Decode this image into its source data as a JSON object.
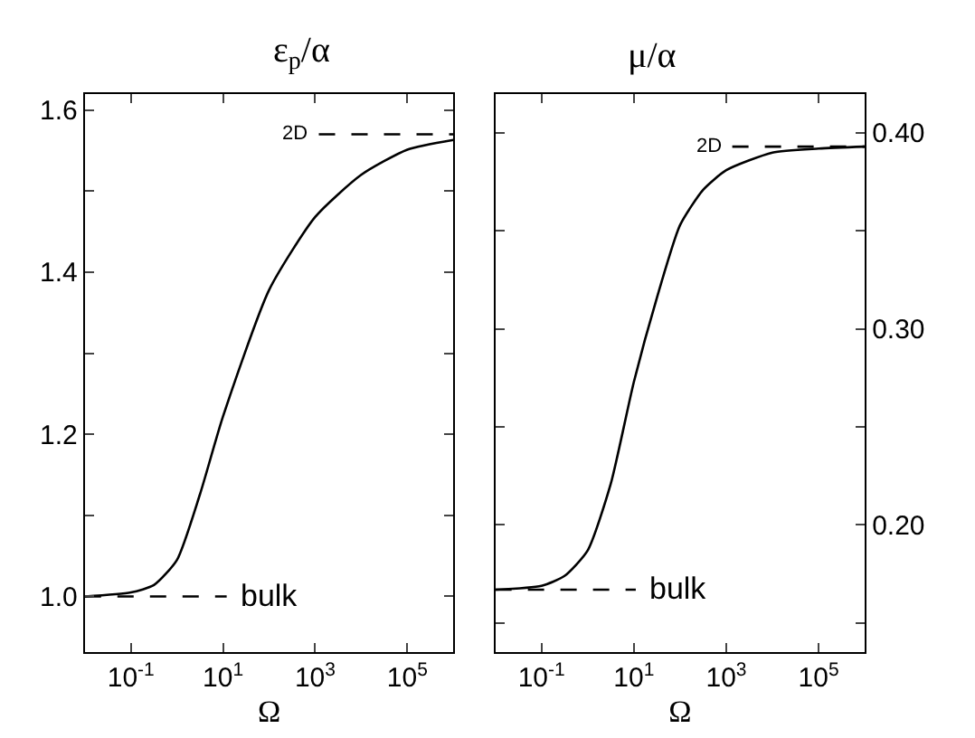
{
  "chart_data": [
    {
      "type": "line",
      "title": "ε$_{p}$/α",
      "xlabel": "Ω",
      "log": "x",
      "grid": false,
      "legend": false,
      "xlim": [
        0.01,
        1000000
      ],
      "xticks": [
        {
          "value": 0.1,
          "label": "10$^{-1}$"
        },
        {
          "value": 10,
          "label": "10$^{1}$"
        },
        {
          "value": 1000,
          "label": "10$^{3}$"
        },
        {
          "value": 100000,
          "label": "10$^{5}$"
        }
      ],
      "ylim": [
        0.931,
        1.62
      ],
      "yticks": [
        {
          "value": 1.0,
          "label": "1.0"
        },
        {
          "value": 1.1,
          "label": null
        },
        {
          "value": 1.2,
          "label": "1.2"
        },
        {
          "value": 1.3,
          "label": null
        },
        {
          "value": 1.4,
          "label": "1.4"
        },
        {
          "value": 1.5,
          "label": null
        },
        {
          "value": 1.6,
          "label": "1.6"
        }
      ],
      "series": [
        {
          "color": "#000000",
          "line_style": "solid",
          "x": [
            0.01,
            0.1,
            0.316,
            1,
            3.16,
            10,
            100,
            1000,
            10000,
            100000,
            1000000
          ],
          "values": [
            1.0,
            1.005,
            1.014,
            1.045,
            1.126,
            1.222,
            1.378,
            1.468,
            1.52,
            1.551,
            1.563
          ]
        },
        {
          "name": "bulk",
          "color": "#000000",
          "line_style": "dashed",
          "x": [
            0.01,
            12
          ],
          "values": [
            1.0,
            1.0
          ]
        },
        {
          "name": "2D",
          "color": "#000000",
          "line_style": "dashed",
          "x": [
            1200,
            1000000
          ],
          "values": [
            1.57,
            1.57
          ]
        }
      ]
    },
    {
      "type": "line",
      "title": "μ/α",
      "xlabel": "Ω",
      "log": "x",
      "grid": false,
      "legend": false,
      "xlim": [
        0.01,
        1000000
      ],
      "xticks": [
        {
          "value": 0.1,
          "label": "10$^{-1}$"
        },
        {
          "value": 10,
          "label": "10$^{1}$"
        },
        {
          "value": 1000,
          "label": "10$^{3}$"
        },
        {
          "value": 100000,
          "label": "10$^{5}$"
        }
      ],
      "y2lim": [
        0.135,
        0.42
      ],
      "y2ticks": [
        {
          "value": 0.15,
          "label": null
        },
        {
          "value": 0.2,
          "label": "0.20"
        },
        {
          "value": 0.25,
          "label": null
        },
        {
          "value": 0.3,
          "label": "0.30"
        },
        {
          "value": 0.35,
          "label": null
        },
        {
          "value": 0.4,
          "label": "0.40"
        }
      ],
      "series": [
        {
          "color": "#000000",
          "line_style": "solid",
          "axis": "y2",
          "x": [
            0.01,
            0.1,
            0.316,
            1,
            3.16,
            10,
            31.6,
            100,
            316,
            1000,
            10000,
            100000,
            1000000
          ],
          "values": [
            0.167,
            0.169,
            0.174,
            0.187,
            0.221,
            0.273,
            0.316,
            0.353,
            0.371,
            0.381,
            0.39,
            0.392,
            0.393
          ]
        },
        {
          "name": "bulk",
          "color": "#000000",
          "line_style": "dashed",
          "axis": "y2",
          "x": [
            0.01,
            11
          ],
          "values": [
            0.167,
            0.167
          ]
        },
        {
          "name": "2D",
          "color": "#000000",
          "line_style": "dashed",
          "axis": "y2",
          "x": [
            1350,
            1000000
          ],
          "values": [
            0.393,
            0.393
          ]
        }
      ]
    }
  ]
}
